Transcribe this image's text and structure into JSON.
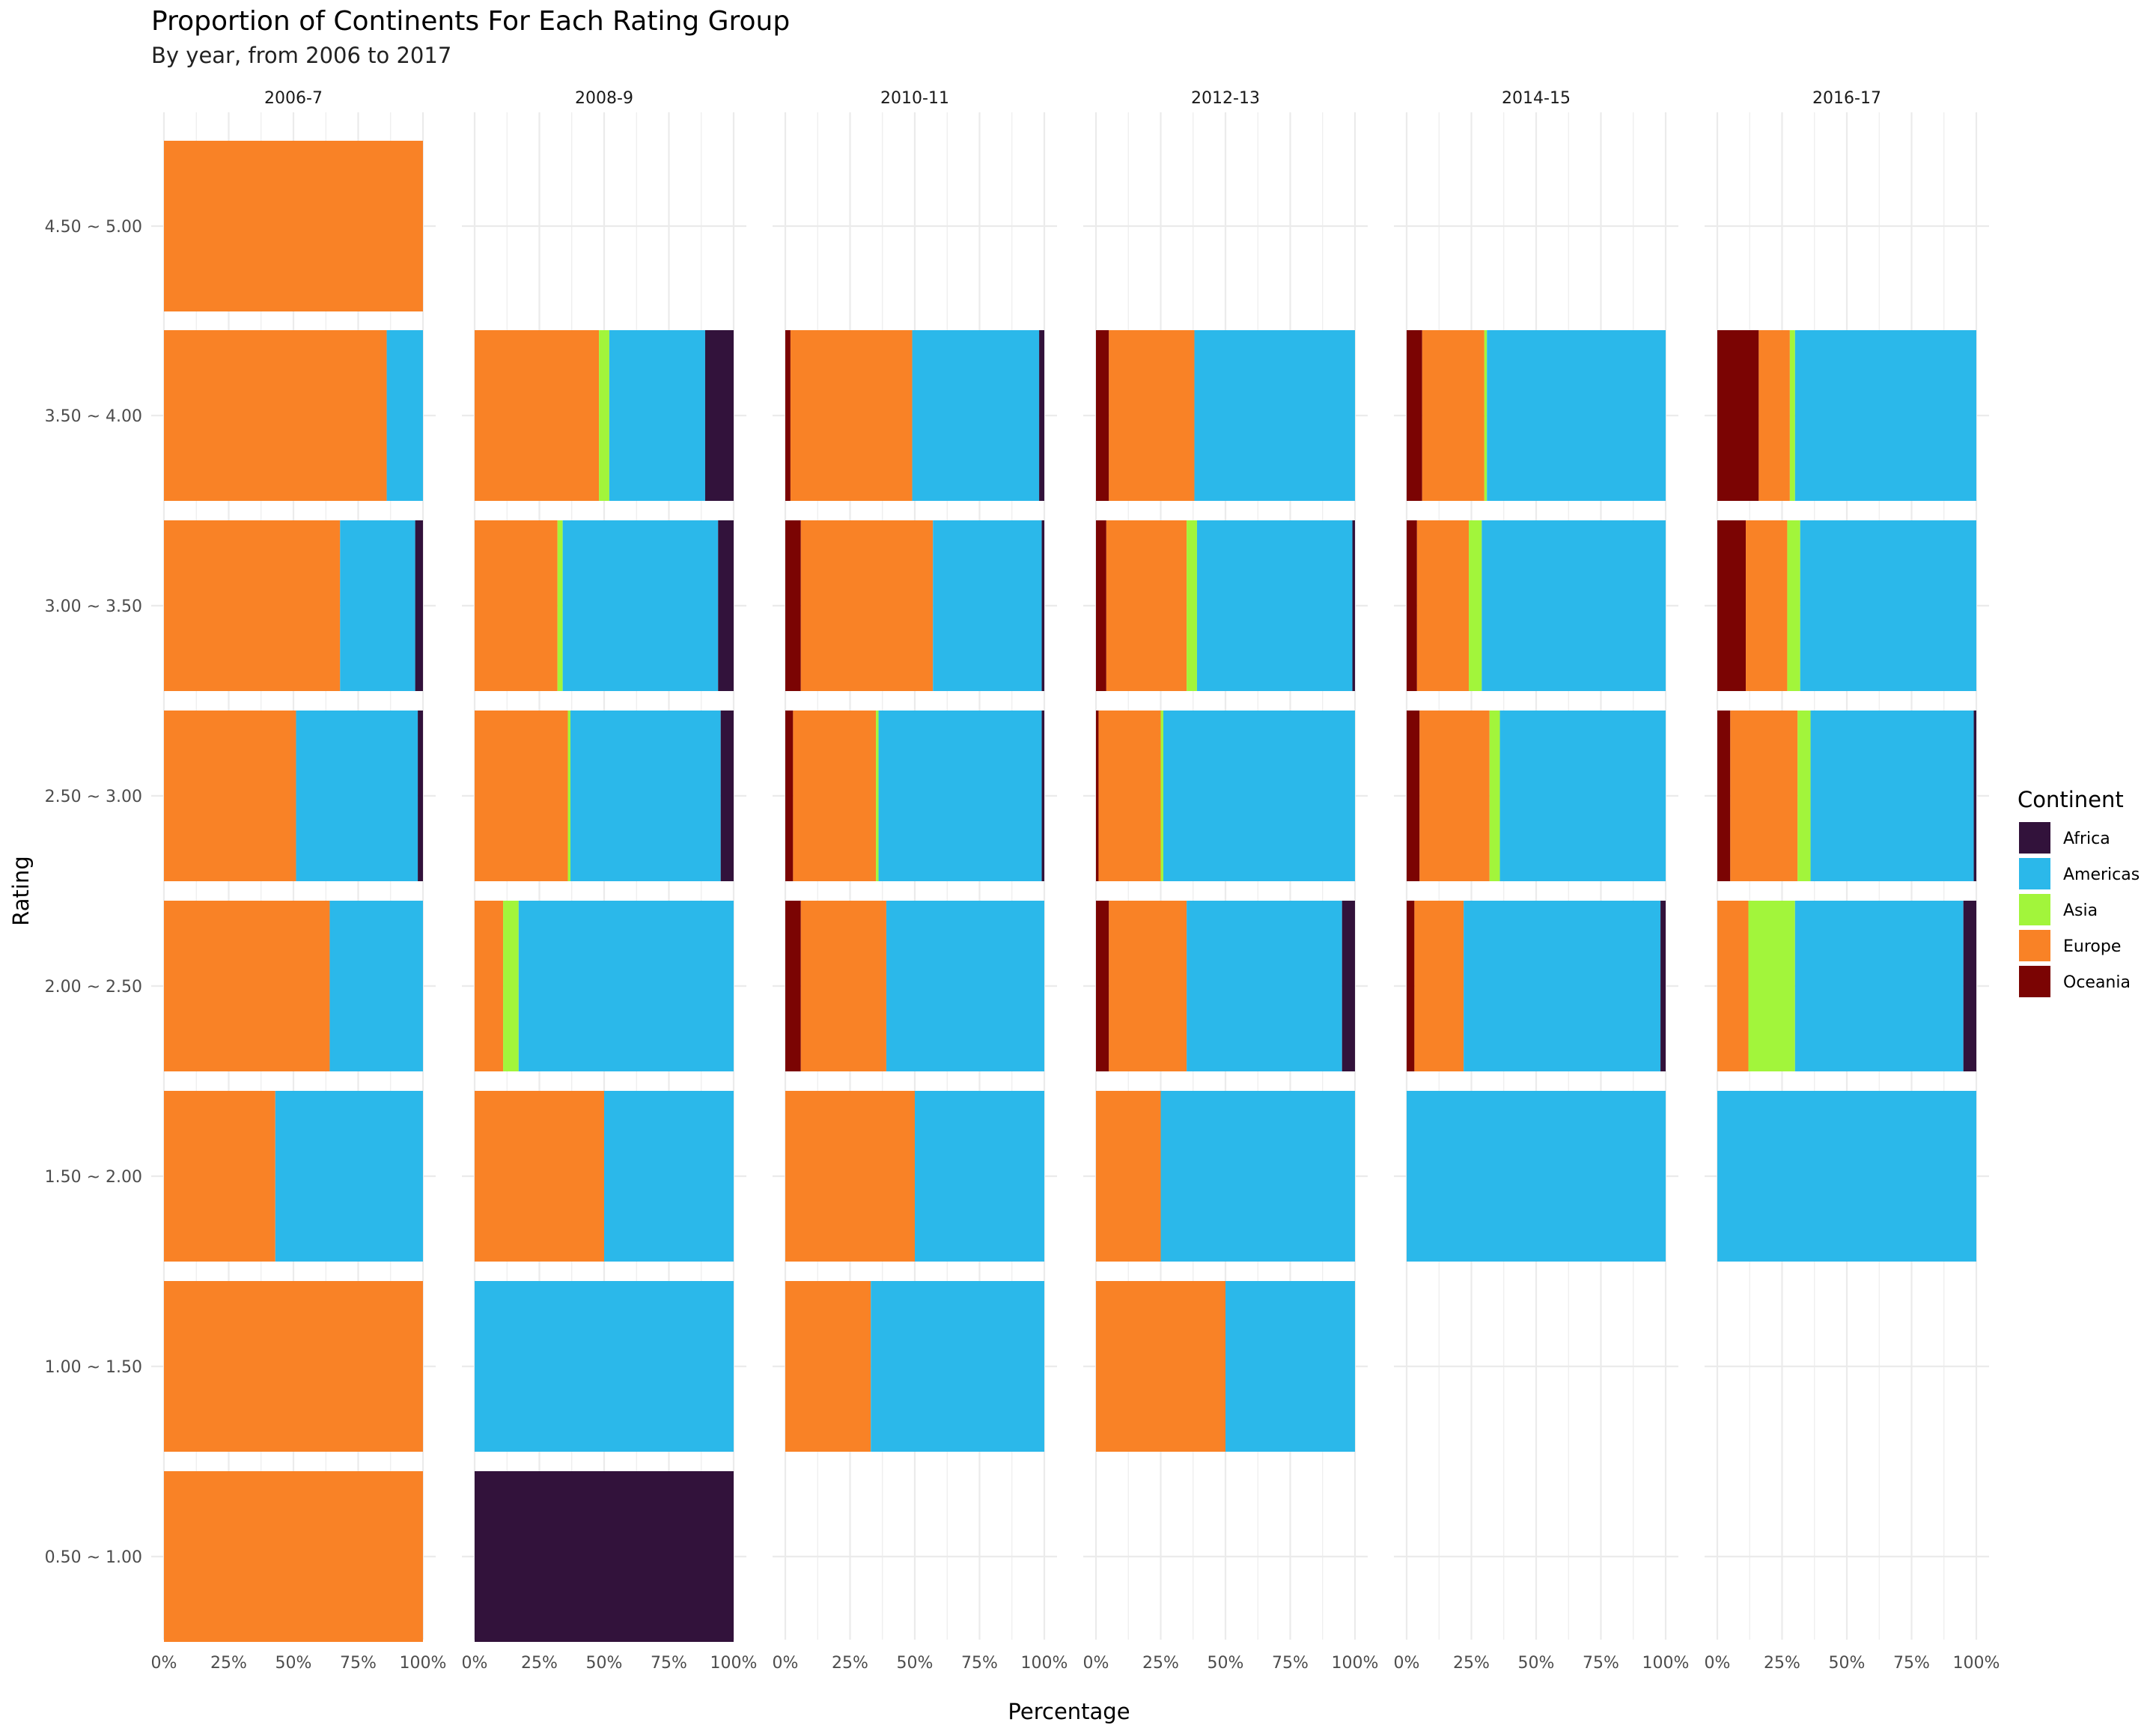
{
  "chart_data": {
    "type": "bar",
    "orientation": "horizontal",
    "stacked": "percent",
    "title": "Proportion of Continents For Each Rating Group",
    "subtitle": "By year, from 2006 to 2017",
    "xlabel": "Percentage",
    "ylabel": "Rating",
    "x_ticks": [
      "0%",
      "25%",
      "50%",
      "75%",
      "100%"
    ],
    "xlim": [
      0,
      100
    ],
    "grid": true,
    "legend": {
      "title": "Continent",
      "position": "right",
      "entries": [
        {
          "name": "Africa",
          "color": "#32123b"
        },
        {
          "name": "Americas",
          "color": "#2bb8ea"
        },
        {
          "name": "Asia",
          "color": "#a2f53b"
        },
        {
          "name": "Europe",
          "color": "#f98226"
        },
        {
          "name": "Oceania",
          "color": "#7b0403"
        }
      ]
    },
    "stack_order": [
      "Oceania",
      "Europe",
      "Asia",
      "Americas",
      "Africa"
    ],
    "categories": [
      "0.50 ~ 1.00",
      "1.00 ~ 1.50",
      "1.50 ~ 2.00",
      "2.00 ~ 2.50",
      "2.50 ~ 3.00",
      "3.00 ~ 3.50",
      "3.50 ~ 4.00",
      "4.50 ~ 5.00"
    ],
    "panels": [
      {
        "label": "2006-7",
        "bars": [
          {
            "rating": "4.50 ~ 5.00",
            "Europe": 100
          },
          {
            "rating": "3.50 ~ 4.00",
            "Europe": 86,
            "Americas": 14
          },
          {
            "rating": "3.00 ~ 3.50",
            "Europe": 68,
            "Americas": 29,
            "Africa": 3
          },
          {
            "rating": "2.50 ~ 3.00",
            "Europe": 51,
            "Americas": 47,
            "Africa": 2
          },
          {
            "rating": "2.00 ~ 2.50",
            "Europe": 64,
            "Americas": 36
          },
          {
            "rating": "1.50 ~ 2.00",
            "Europe": 43,
            "Americas": 57
          },
          {
            "rating": "1.00 ~ 1.50",
            "Europe": 100
          },
          {
            "rating": "0.50 ~ 1.00",
            "Europe": 100
          }
        ]
      },
      {
        "label": "2008-9",
        "bars": [
          {
            "rating": "3.50 ~ 4.00",
            "Europe": 48,
            "Asia": 4,
            "Americas": 37,
            "Africa": 11
          },
          {
            "rating": "3.00 ~ 3.50",
            "Europe": 32,
            "Asia": 2,
            "Americas": 60,
            "Africa": 6
          },
          {
            "rating": "2.50 ~ 3.00",
            "Europe": 36,
            "Asia": 1,
            "Americas": 58,
            "Africa": 5
          },
          {
            "rating": "2.00 ~ 2.50",
            "Europe": 11,
            "Asia": 6,
            "Americas": 83
          },
          {
            "rating": "1.50 ~ 2.00",
            "Europe": 50,
            "Americas": 50
          },
          {
            "rating": "1.00 ~ 1.50",
            "Americas": 100
          },
          {
            "rating": "0.50 ~ 1.00",
            "Africa": 100
          }
        ]
      },
      {
        "label": "2010-11",
        "bars": [
          {
            "rating": "3.50 ~ 4.00",
            "Oceania": 2,
            "Europe": 47,
            "Americas": 49,
            "Africa": 2
          },
          {
            "rating": "3.00 ~ 3.50",
            "Oceania": 6,
            "Europe": 51,
            "Americas": 42,
            "Africa": 1
          },
          {
            "rating": "2.50 ~ 3.00",
            "Oceania": 3,
            "Europe": 32,
            "Asia": 1,
            "Americas": 63,
            "Africa": 1
          },
          {
            "rating": "2.00 ~ 2.50",
            "Oceania": 6,
            "Europe": 33,
            "Americas": 61
          },
          {
            "rating": "1.50 ~ 2.00",
            "Europe": 50,
            "Americas": 50
          },
          {
            "rating": "1.00 ~ 1.50",
            "Europe": 33,
            "Americas": 67
          }
        ]
      },
      {
        "label": "2012-13",
        "bars": [
          {
            "rating": "3.50 ~ 4.00",
            "Oceania": 5,
            "Europe": 33,
            "Americas": 62
          },
          {
            "rating": "3.00 ~ 3.50",
            "Oceania": 4,
            "Europe": 31,
            "Asia": 4,
            "Americas": 60,
            "Africa": 1
          },
          {
            "rating": "2.50 ~ 3.00",
            "Oceania": 1,
            "Europe": 24,
            "Asia": 1,
            "Americas": 74
          },
          {
            "rating": "2.00 ~ 2.50",
            "Oceania": 5,
            "Europe": 30,
            "Americas": 60,
            "Africa": 5
          },
          {
            "rating": "1.50 ~ 2.00",
            "Europe": 25,
            "Americas": 75
          },
          {
            "rating": "1.00 ~ 1.50",
            "Europe": 50,
            "Americas": 50
          }
        ]
      },
      {
        "label": "2014-15",
        "bars": [
          {
            "rating": "3.50 ~ 4.00",
            "Oceania": 6,
            "Europe": 24,
            "Asia": 1,
            "Americas": 69
          },
          {
            "rating": "3.00 ~ 3.50",
            "Oceania": 4,
            "Europe": 20,
            "Asia": 5,
            "Americas": 71
          },
          {
            "rating": "2.50 ~ 3.00",
            "Oceania": 5,
            "Europe": 27,
            "Asia": 4,
            "Americas": 64
          },
          {
            "rating": "2.00 ~ 2.50",
            "Oceania": 3,
            "Europe": 19,
            "Americas": 76,
            "Africa": 2
          },
          {
            "rating": "1.50 ~ 2.00",
            "Americas": 100
          }
        ]
      },
      {
        "label": "2016-17",
        "bars": [
          {
            "rating": "3.50 ~ 4.00",
            "Oceania": 16,
            "Europe": 12,
            "Asia": 2,
            "Americas": 70
          },
          {
            "rating": "3.00 ~ 3.50",
            "Oceania": 11,
            "Europe": 16,
            "Asia": 5,
            "Americas": 68
          },
          {
            "rating": "2.50 ~ 3.00",
            "Oceania": 5,
            "Europe": 26,
            "Asia": 5,
            "Americas": 63,
            "Africa": 1
          },
          {
            "rating": "2.00 ~ 2.50",
            "Europe": 12,
            "Asia": 18,
            "Americas": 65,
            "Africa": 5
          },
          {
            "rating": "1.50 ~ 2.00",
            "Americas": 100
          }
        ]
      }
    ]
  }
}
